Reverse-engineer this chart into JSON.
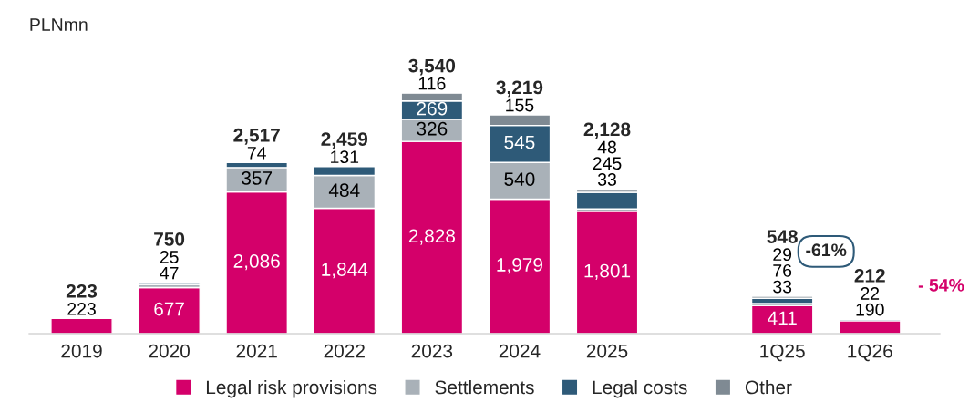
{
  "chart_data": {
    "type": "bar",
    "stacked": true,
    "ylabel": "PLNmn",
    "legend": "bottom",
    "categories": [
      "2019",
      "2020",
      "2021",
      "2022",
      "2023",
      "2024",
      "2025",
      null,
      "1Q25",
      "1Q26"
    ],
    "series": [
      {
        "name": "Legal risk provisions",
        "color": "#d4006a",
        "values": [
          223,
          677,
          2086,
          1844,
          2828,
          1979,
          1801,
          null,
          411,
          190
        ],
        "value_labels": [
          "223",
          "677",
          "2,086",
          "1,844",
          "2,828",
          "1,979",
          "1,801",
          null,
          "411",
          "190"
        ]
      },
      {
        "name": "Settlements",
        "color": "#a9b1b8",
        "values": [
          null,
          47,
          357,
          484,
          326,
          540,
          33,
          null,
          33,
          null
        ],
        "value_labels": [
          null,
          "47",
          "357",
          "484",
          "326",
          "540",
          "33",
          null,
          "33",
          null
        ]
      },
      {
        "name": "Legal costs",
        "color": "#2e5a78",
        "values": [
          null,
          25,
          74,
          131,
          269,
          545,
          245,
          null,
          76,
          22
        ],
        "value_labels": [
          null,
          "25",
          "74",
          "131",
          "269",
          "545",
          "245",
          null,
          "76",
          "22"
        ]
      },
      {
        "name": "Other",
        "color": "#7f8a93",
        "values": [
          null,
          null,
          null,
          null,
          116,
          155,
          48,
          null,
          29,
          null
        ],
        "value_labels": [
          null,
          null,
          null,
          null,
          "116",
          "155",
          "48",
          null,
          "29",
          null
        ]
      }
    ],
    "totals": [
      "223",
      "750",
      "2,517",
      "2,459",
      "3,540",
      "3,219",
      "2,128",
      null,
      "548",
      "212"
    ],
    "annotations": [
      "-61%",
      "- 54%"
    ]
  }
}
